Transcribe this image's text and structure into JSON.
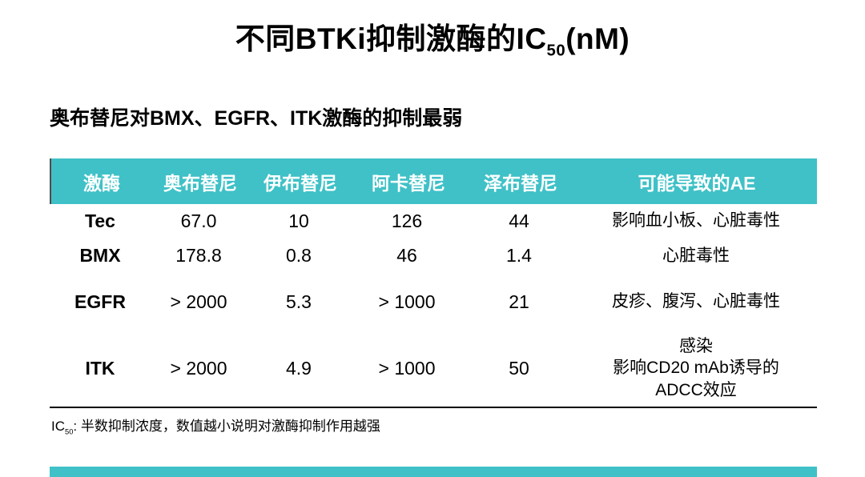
{
  "title": {
    "main": "不同BTKi抑制激酶的IC",
    "subscript": "50",
    "tail": "(nM)"
  },
  "subtitle": "奥布替尼对BMX、EGFR、ITK激酶的抑制最弱",
  "table": {
    "headers": [
      "激酶",
      "奥布替尼",
      "伊布替尼",
      "阿卡替尼",
      "泽布替尼",
      "可能导致的AE"
    ],
    "rows": [
      {
        "kinase": "Tec",
        "values": [
          "67.0",
          "10",
          "126",
          "44"
        ],
        "ae_lines": [
          "影响血小板、心脏毒性"
        ]
      },
      {
        "kinase": "BMX",
        "values": [
          "178.8",
          "0.8",
          "46",
          "1.4"
        ],
        "ae_lines": [
          "心脏毒性"
        ]
      },
      {
        "kinase": "EGFR",
        "values": [
          "> 2000",
          "5.3",
          "> 1000",
          "21"
        ],
        "ae_lines": [
          "皮疹、腹泻、心脏毒性"
        ]
      },
      {
        "kinase": "ITK",
        "values": [
          "> 2000",
          "4.9",
          "> 1000",
          "50"
        ],
        "ae_lines": [
          "感染",
          "影响CD20 mAb诱导的",
          "ADCC效应"
        ]
      }
    ]
  },
  "footnote": {
    "main": "IC",
    "subscript": "50",
    "tail": ": 半数抑制浓度，数值越小说明对激酶抑制作用越强"
  },
  "colors": {
    "header_bg": "#3FC1C7",
    "accent_bar": "#3FC1C7",
    "header_text": "#FFFFFF",
    "body_text": "#000000"
  },
  "chart_data": {
    "type": "table",
    "title": "不同BTKi抑制激酶的IC50(nM)",
    "columns": [
      "激酶",
      "奥布替尼",
      "伊布替尼",
      "阿卡替尼",
      "泽布替尼",
      "可能导致的AE"
    ],
    "rows": [
      [
        "Tec",
        "67.0",
        "10",
        "126",
        "44",
        "影响血小板、心脏毒性"
      ],
      [
        "BMX",
        "178.8",
        "0.8",
        "46",
        "1.4",
        "心脏毒性"
      ],
      [
        "EGFR",
        "> 2000",
        "5.3",
        "> 1000",
        "21",
        "皮疹、腹泻、心脏毒性"
      ],
      [
        "ITK",
        "> 2000",
        "4.9",
        "> 1000",
        "50",
        "感染 影响CD20 mAb诱导的 ADCC效应"
      ]
    ]
  }
}
